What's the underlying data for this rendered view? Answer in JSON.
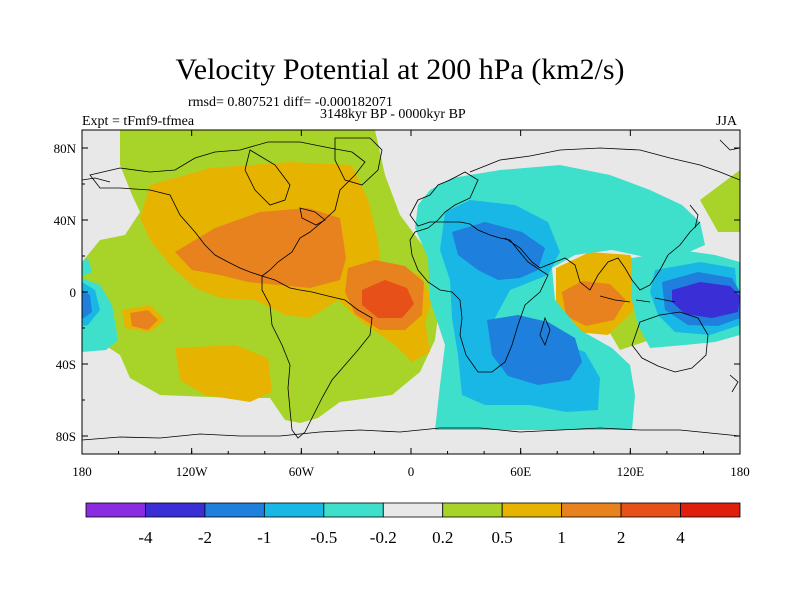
{
  "title": "Velocity Potential at 200 hPa (km2/s)",
  "stats_line": "rmsd= 0.807521 diff= -0.000182071",
  "period_line": "3148kyr BP - 0000kyr BP",
  "experiment_label": "Expt = tFmf9-tfmea",
  "season_label": "JJA",
  "y_ticks": [
    "80N",
    "40N",
    "0",
    "40S",
    "80S"
  ],
  "x_ticks": [
    "180",
    "120W",
    "60W",
    "0",
    "60E",
    "120E",
    "180"
  ],
  "colorbar": {
    "labels": [
      "-4",
      "-2",
      "-1",
      "-0.5",
      "-0.2",
      "0.2",
      "0.5",
      "1",
      "2",
      "4"
    ],
    "colors": [
      "#8a2be2",
      "#3a2fd6",
      "#1e7fdc",
      "#19b7e6",
      "#3ee0cc",
      "#e8e8e8",
      "#a8d42a",
      "#e6b400",
      "#e8821e",
      "#e8501a",
      "#e01e0e"
    ]
  }
}
